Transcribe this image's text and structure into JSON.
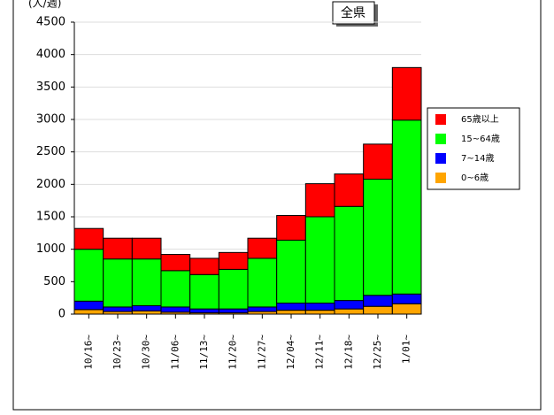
{
  "button": "全県",
  "chart_data": {
    "type": "stacked_bar",
    "y_label": "(人/週)",
    "categories": [
      "10/16~",
      "10/23~",
      "10/30~",
      "11/06~",
      "11/13~",
      "11/20~",
      "11/27~",
      "12/04~",
      "12/11~",
      "12/18~",
      "12/25~",
      "1/01~"
    ],
    "series": [
      {
        "name": "0~6歳",
        "color": "#ffa500",
        "values": [
          70,
          40,
          50,
          30,
          20,
          20,
          40,
          60,
          60,
          80,
          120,
          160
        ]
      },
      {
        "name": "7~14歳",
        "color": "#0000ff",
        "values": [
          130,
          70,
          80,
          80,
          60,
          60,
          70,
          110,
          110,
          130,
          170,
          150
        ]
      },
      {
        "name": "15~64歳",
        "color": "#00ff00",
        "values": [
          800,
          740,
          720,
          560,
          530,
          610,
          750,
          970,
          1330,
          1450,
          1790,
          2680
        ]
      },
      {
        "name": "65歳以上",
        "color": "#ff0000",
        "values": [
          320,
          320,
          320,
          250,
          250,
          260,
          310,
          380,
          510,
          500,
          540,
          810
        ]
      }
    ],
    "ylim": [
      0,
      4500
    ],
    "yticks": [
      0,
      500,
      1000,
      1500,
      2000,
      2500,
      3000,
      3500,
      4000,
      4500
    ],
    "grid": true
  }
}
